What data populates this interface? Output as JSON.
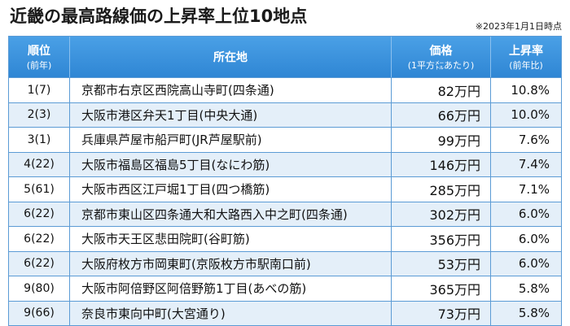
{
  "header": {
    "title": "近畿の最高路線価の上昇率上位10地点",
    "note": "※2023年1月1日時点"
  },
  "table": {
    "columns": [
      {
        "main": "順位",
        "sub": "(前年)"
      },
      {
        "main": "所在地"
      },
      {
        "main": "価格",
        "sub": "(1平方㍍あたり)"
      },
      {
        "main": "上昇率",
        "sub": "(前年比)"
      }
    ],
    "rows": [
      [
        "1(7)",
        "京都市右京区西院高山寺町(四条通)",
        "82万円",
        "10.8%"
      ],
      [
        "2(3)",
        "大阪市港区弁天1丁目(中央大通)",
        "66万円",
        "10.0%"
      ],
      [
        "3(1)",
        "兵庫県芦屋市船戸町(JR芦屋駅前)",
        "99万円",
        "7.6%"
      ],
      [
        "4(22)",
        "大阪市福島区福島5丁目(なにわ筋)",
        "146万円",
        "7.4%"
      ],
      [
        "5(61)",
        "大阪市西区江戸堀1丁目(四つ橋筋)",
        "285万円",
        "7.1%"
      ],
      [
        "6(22)",
        "京都市東山区四条通大和大路西入中之町(四条通)",
        "302万円",
        "6.0%"
      ],
      [
        "6(22)",
        "大阪市天王区悲田院町(谷町筋)",
        "356万円",
        "6.0%"
      ],
      [
        "6(22)",
        "大阪府枚方市岡東町(京阪枚方市駅南口前)",
        "53万円",
        "6.0%"
      ],
      [
        "9(80)",
        "大阪市阿倍野区阿倍野筋1丁目(あべの筋)",
        "365万円",
        "5.8%"
      ],
      [
        "9(66)",
        "奈良市東向中町(大宮通り)",
        "73万円",
        "5.8%"
      ]
    ]
  }
}
